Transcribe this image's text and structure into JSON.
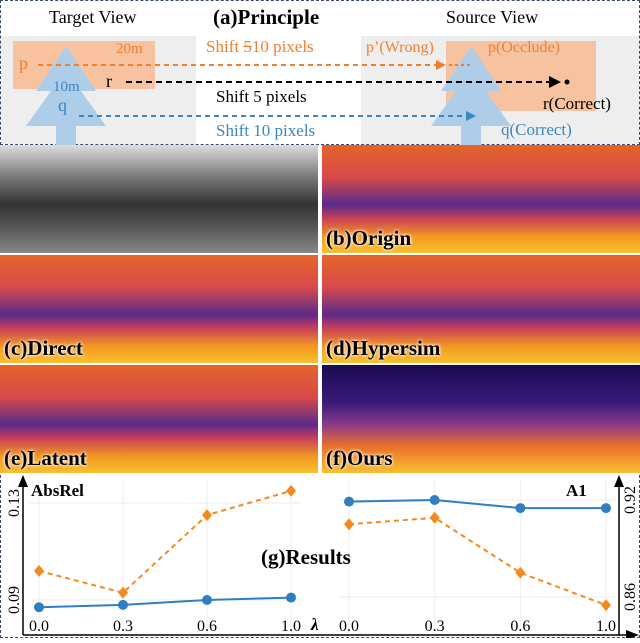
{
  "principle": {
    "title": "(a)Principle",
    "target_view": "Target View",
    "source_view": "Source View",
    "shift_orange": "Shift 510 pixels",
    "shift_orange_struck": "5",
    "shift_orange_rest": "10 pixels",
    "shift_orange_pre": "Shift ",
    "shift_black": "Shift 5 pixels",
    "shift_blue": "Shift 10 pixels",
    "p": "p",
    "q": "q",
    "r": "r",
    "d20": "20m",
    "d10": "10m",
    "p_wrong": "p’(Wrong)",
    "p_occlude": "p(Occlude)",
    "r_correct": "r(Correct)",
    "q_correct": "q(Correct)",
    "colors": {
      "orange": "#f08030",
      "blue": "#3a86c0",
      "tree": "#aecde8",
      "block": "#f7c2a0"
    }
  },
  "panels": [
    {
      "label": ""
    },
    {
      "label": "(b)Origin"
    },
    {
      "label": "(c)Direct"
    },
    {
      "label": "(d)Hypersim"
    },
    {
      "label": "(e)Latent"
    },
    {
      "label": "(f)Ours"
    }
  ],
  "chart_data": [
    {
      "type": "line",
      "title": "(g)Results",
      "ylabel": "AbsRel",
      "xlabel": "λ",
      "categories": [
        "0.0",
        "0.3",
        "0.6",
        "1.0"
      ],
      "yticks": [
        "0.09",
        "0.13"
      ],
      "ylim": [
        0.085,
        0.137
      ],
      "series": [
        {
          "style": "solid-circle",
          "color": "#2f7fc0",
          "values": [
            0.087,
            0.088,
            0.09,
            0.091
          ]
        },
        {
          "style": "dashed-diamond",
          "color": "#f5891f",
          "values": [
            0.102,
            0.093,
            0.125,
            0.135
          ]
        }
      ]
    },
    {
      "type": "line",
      "ylabel": "A1",
      "categories": [
        "0.0",
        "0.3",
        "0.6",
        "1.0"
      ],
      "yticks": [
        "0.92",
        "0.86"
      ],
      "ylim": [
        0.852,
        0.925
      ],
      "series": [
        {
          "style": "solid-circle",
          "color": "#2f7fc0",
          "values": [
            0.919,
            0.92,
            0.915,
            0.915
          ]
        },
        {
          "style": "dashed-diamond",
          "color": "#f5891f",
          "values": [
            0.905,
            0.909,
            0.875,
            0.855
          ]
        }
      ]
    }
  ]
}
